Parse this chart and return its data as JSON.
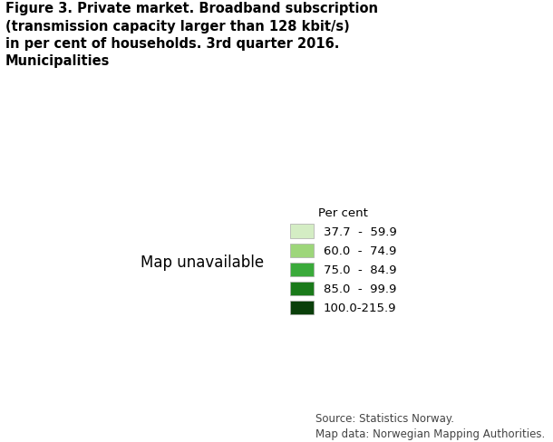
{
  "title_line1": "Figure 3. Private market. Broadband subscription",
  "title_line2": "(transmission capacity larger than 128 kbit/s)",
  "title_line3": "in per cent of households. 3rd quarter 2016.",
  "title_line4": "Municipalities",
  "legend_title": "Per cent",
  "legend_labels": [
    "37.7  -  59.9",
    "60.0  -  74.9",
    "75.0  -  84.9",
    "85.0  -  99.9",
    "100.0-215.9"
  ],
  "legend_colors": [
    "#d4edc4",
    "#9dd67a",
    "#3aaa3a",
    "#1a7a1a",
    "#0a3f0a"
  ],
  "source_line1": "Source: Statistics Norway.",
  "source_line2": "Map data: Norwegian Mapping Authorities.",
  "background_color": "#ffffff",
  "title_fontsize": 10.5,
  "legend_fontsize": 9.5,
  "source_fontsize": 8.5
}
